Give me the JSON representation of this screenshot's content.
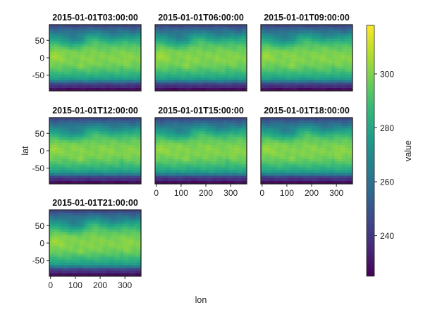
{
  "chart_data": {
    "type": "heatmap",
    "variable": "value",
    "xlabel": "lon",
    "ylabel": "lat",
    "colorbar_label": "value",
    "colormap": "viridis",
    "color_range": [
      225,
      318
    ],
    "xlim": [
      -5,
      365
    ],
    "ylim": [
      -95,
      95
    ],
    "x_ticks": [
      0,
      100,
      200,
      300
    ],
    "y_ticks": [
      50,
      0,
      -50
    ],
    "colorbar_ticks": [
      300,
      280,
      260,
      240
    ],
    "panels": [
      {
        "title": "2015-01-01T03:00:00"
      },
      {
        "title": "2015-01-01T06:00:00"
      },
      {
        "title": "2015-01-01T09:00:00"
      },
      {
        "title": "2015-01-01T12:00:00"
      },
      {
        "title": "2015-01-01T15:00:00"
      },
      {
        "title": "2015-01-01T18:00:00"
      },
      {
        "title": "2015-01-01T21:00:00"
      }
    ],
    "grid": false
  }
}
